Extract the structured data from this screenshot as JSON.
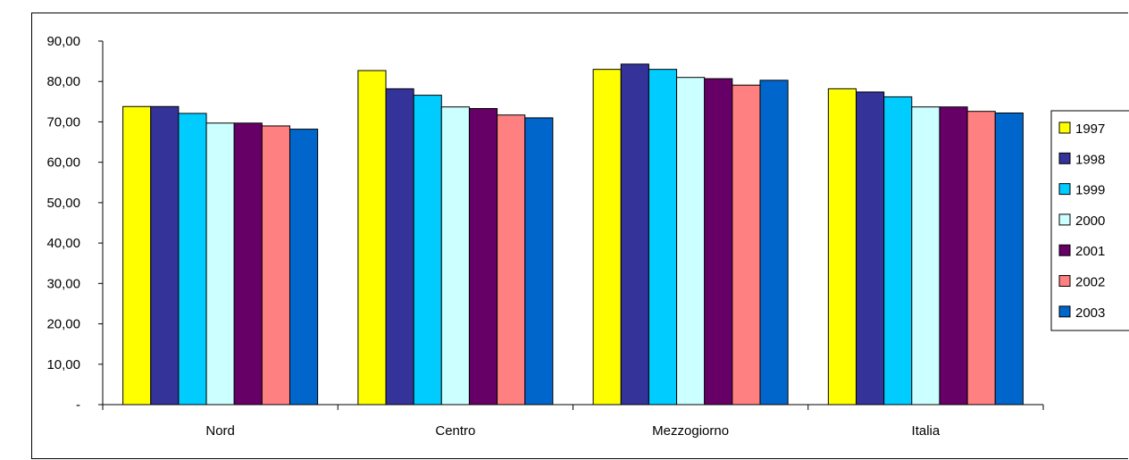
{
  "chart_data": {
    "type": "bar",
    "categories": [
      "Nord",
      "Centro",
      "Mezzogiorno",
      "Italia"
    ],
    "series": [
      {
        "name": "1997",
        "color": "#FFFF00",
        "values": [
          73.8,
          82.7,
          83.0,
          78.2
        ]
      },
      {
        "name": "1998",
        "color": "#333399",
        "values": [
          73.8,
          78.2,
          84.3,
          77.4
        ]
      },
      {
        "name": "1999",
        "color": "#00CCFF",
        "values": [
          72.1,
          76.6,
          83.0,
          76.2
        ]
      },
      {
        "name": "2000",
        "color": "#CCFFFF",
        "values": [
          69.7,
          73.7,
          81.0,
          73.7
        ]
      },
      {
        "name": "2001",
        "color": "#660066",
        "values": [
          69.7,
          73.3,
          80.7,
          73.7
        ]
      },
      {
        "name": "2002",
        "color": "#FF8080",
        "values": [
          69.0,
          71.7,
          79.1,
          72.6
        ]
      },
      {
        "name": "2003",
        "color": "#0066CC",
        "values": [
          68.2,
          71.0,
          80.3,
          72.2
        ]
      }
    ],
    "ylim": [
      0,
      90
    ],
    "yticks": [
      "-",
      "10,00",
      "20,00",
      "30,00",
      "40,00",
      "50,00",
      "60,00",
      "70,00",
      "80,00",
      "90,00"
    ],
    "grid": false,
    "legend": "right"
  }
}
